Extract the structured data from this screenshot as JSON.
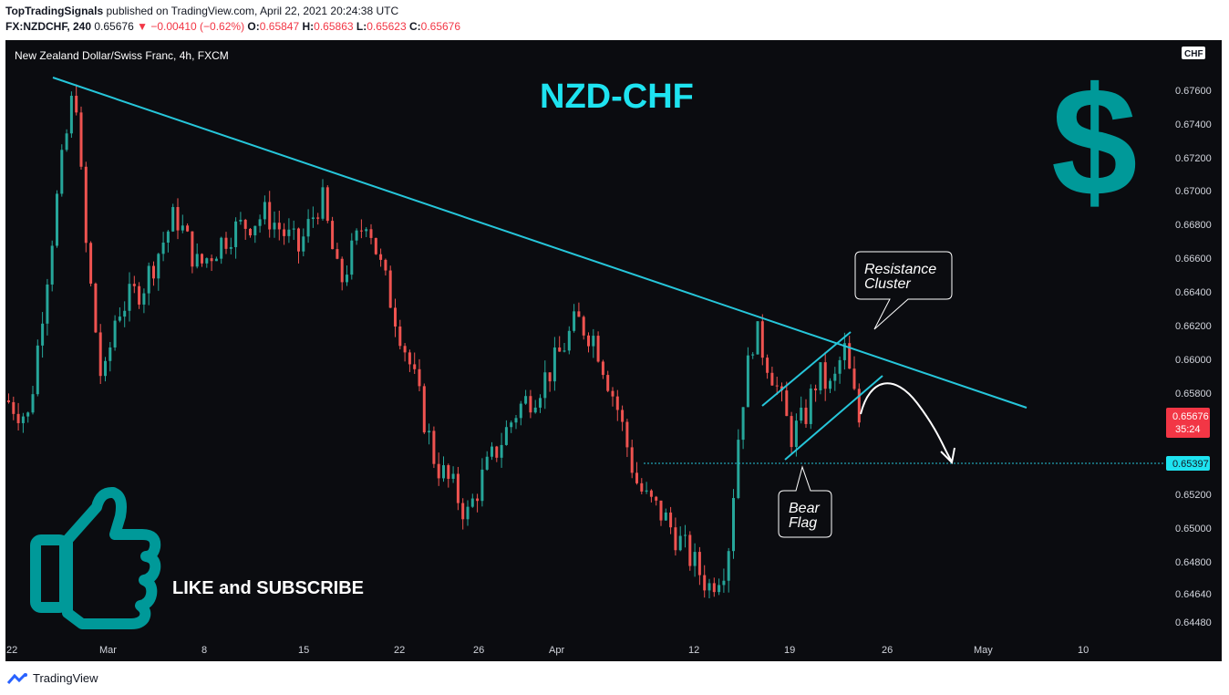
{
  "header": {
    "author": "TopTradingSignals",
    "published_text": "published on TradingView.com, April 22, 2021 20:24:38 UTC",
    "symbol": "FX:NZDCHF, 240",
    "last": "0.65676",
    "change": "−0.00410 (−0.62%)",
    "o_label": "O:",
    "o_value": "0.65847",
    "h_label": "H:",
    "h_value": "0.65863",
    "l_label": "L:",
    "l_value": "0.65623",
    "c_label": "C:",
    "c_value": "0.65676"
  },
  "chart": {
    "pair_label": "New Zealand Dollar/Swiss Franc, 4h, FXCM",
    "big_title": "NZD-CHF",
    "currency_badge": "CHF",
    "like_text": "LIKE and SUBSCRIBE",
    "callout_resistance_1": "Resistance",
    "callout_resistance_2": "Cluster",
    "callout_flag_1": "Bear",
    "callout_flag_2": "Flag",
    "price_tag": "0.65676",
    "countdown": "35:24",
    "target_tag": "0.65397"
  },
  "footer": {
    "brand": "TradingView"
  },
  "colors": {
    "background": "#0b0c10",
    "up": "#26a69a",
    "down": "#ef5350",
    "trendline": "#26c6da",
    "accent_teal": "#009999",
    "price_tag": "#f23645"
  },
  "chart_data": {
    "type": "candlestick",
    "title": "New Zealand Dollar/Swiss Franc, 4h, FXCM",
    "xlabel": "",
    "ylabel": "",
    "ylim": [
      0.6438,
      0.6788
    ],
    "y_ticks": [
      "0.67600",
      "0.67400",
      "0.67200",
      "0.67000",
      "0.66800",
      "0.66600",
      "0.66400",
      "0.66200",
      "0.66000",
      "0.65800",
      "0.65200",
      "0.65000",
      "0.64800",
      "0.64640",
      "0.64480"
    ],
    "x_ticks": [
      "22",
      "Mar",
      "8",
      "15",
      "22",
      "26",
      "Apr",
      "12",
      "19",
      "26",
      "May",
      "10"
    ],
    "close_path": [
      [
        "Feb 22",
        0.6585
      ],
      [
        "Feb 23",
        0.6575
      ],
      [
        "Feb 24",
        0.664
      ],
      [
        "Feb 25",
        0.671
      ],
      [
        "Feb 26",
        0.6765
      ],
      [
        "Feb 27",
        0.668
      ],
      [
        "Mar 1",
        0.659
      ],
      [
        "Mar 2",
        0.6635
      ],
      [
        "Mar 4",
        0.665
      ],
      [
        "Mar 6",
        0.669
      ],
      [
        "Mar 8",
        0.666
      ],
      [
        "Mar 10",
        0.668
      ],
      [
        "Mar 12",
        0.669
      ],
      [
        "Mar 15",
        0.667
      ],
      [
        "Mar 17",
        0.67
      ],
      [
        "Mar 18",
        0.665
      ],
      [
        "Mar 19",
        0.669
      ],
      [
        "Mar 20",
        0.666
      ],
      [
        "Mar 22",
        0.663
      ],
      [
        "Mar 23",
        0.66
      ],
      [
        "Mar 24",
        0.658
      ],
      [
        "Mar 25",
        0.655
      ],
      [
        "Mar 26",
        0.6535
      ],
      [
        "Mar 27",
        0.652
      ],
      [
        "Mar 29",
        0.654
      ],
      [
        "Mar 30",
        0.6565
      ],
      [
        "Mar 31",
        0.658
      ],
      [
        "Apr 1",
        0.659
      ],
      [
        "Apr 3",
        0.6605
      ],
      [
        "Apr 5",
        0.663
      ],
      [
        "Apr 6",
        0.662
      ],
      [
        "Apr 7",
        0.658
      ],
      [
        "Apr 8",
        0.654
      ],
      [
        "Apr 9",
        0.653
      ],
      [
        "Apr 10",
        0.652
      ],
      [
        "Apr 11",
        0.65
      ],
      [
        "Apr 12",
        0.648
      ],
      [
        "Apr 13",
        0.6495
      ],
      [
        "Apr 14",
        0.658
      ],
      [
        "Apr 15",
        0.6625
      ],
      [
        "Apr 16",
        0.66
      ],
      [
        "Apr 17",
        0.6565
      ],
      [
        "Apr 18",
        0.6575
      ],
      [
        "Apr 19",
        0.66
      ],
      [
        "Apr 20",
        0.659
      ],
      [
        "Apr 21",
        0.6615
      ],
      [
        "Apr 22",
        0.65676
      ]
    ],
    "series": [
      {
        "name": "",
        "type": "trendline",
        "points": [
          [
            "Feb 26",
            0.6768
          ],
          [
            "Apr 29",
            0.6573
          ]
        ]
      }
    ],
    "annotations": [
      {
        "text": "Resistance Cluster",
        "type": "callout"
      },
      {
        "text": "Bear Flag",
        "type": "callout"
      },
      {
        "text": "0.65397",
        "type": "horizontal-line"
      },
      {
        "text": "NZD-CHF",
        "type": "title"
      },
      {
        "text": "LIKE and SUBSCRIBE",
        "type": "label"
      }
    ],
    "grid": false
  }
}
